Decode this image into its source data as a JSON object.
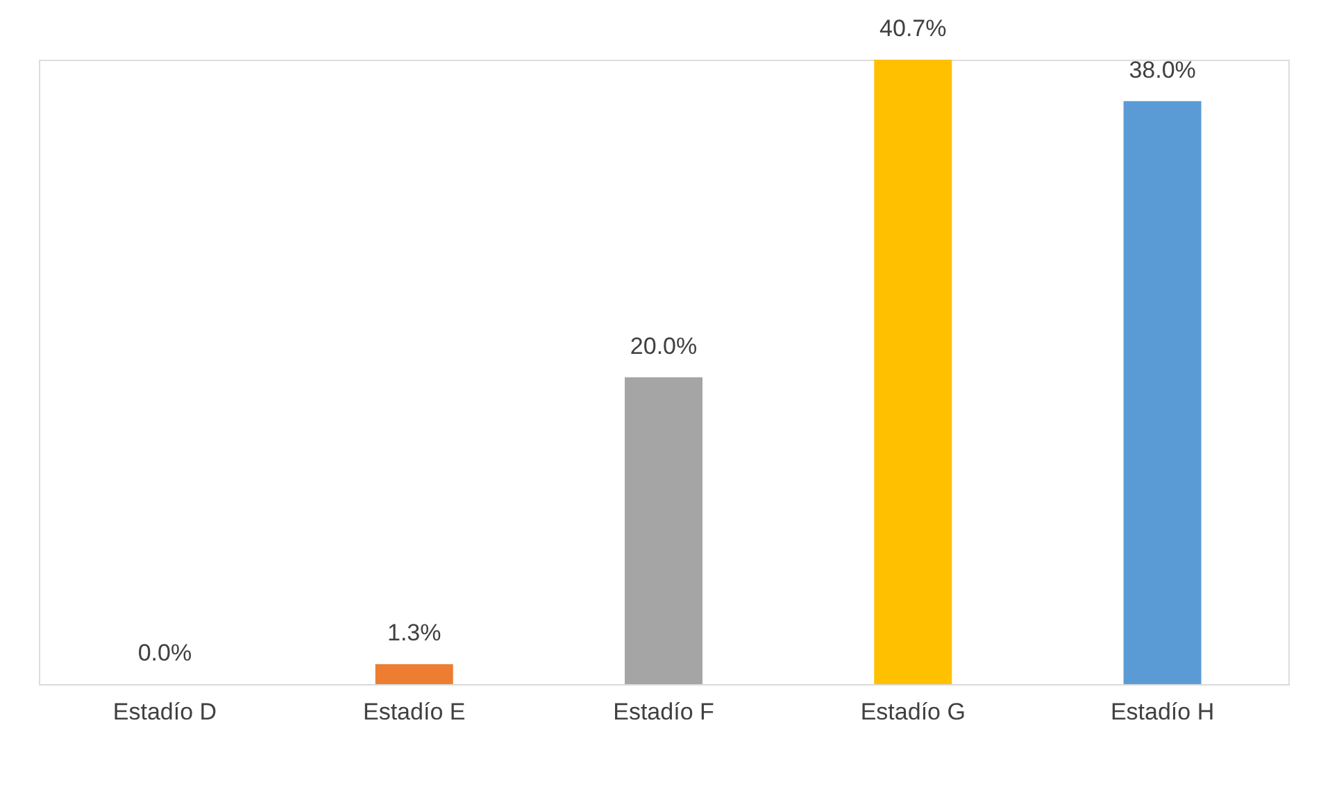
{
  "chart_data": {
    "type": "bar",
    "categories": [
      "Estadío D",
      "Estadío E",
      "Estadío F",
      "Estadío G",
      "Estadío H"
    ],
    "values": [
      0.0,
      1.3,
      20.0,
      40.7,
      38.0
    ],
    "colors": [
      "#4472c4",
      "#ed7d31",
      "#a5a5a5",
      "#ffc000",
      "#5b9bd5"
    ],
    "value_labels": [
      "0.0%",
      "1.3%",
      "20.0%",
      "40.7%",
      "38.0%"
    ],
    "grid": false,
    "legend": false,
    "tick_labels": "x"
  }
}
